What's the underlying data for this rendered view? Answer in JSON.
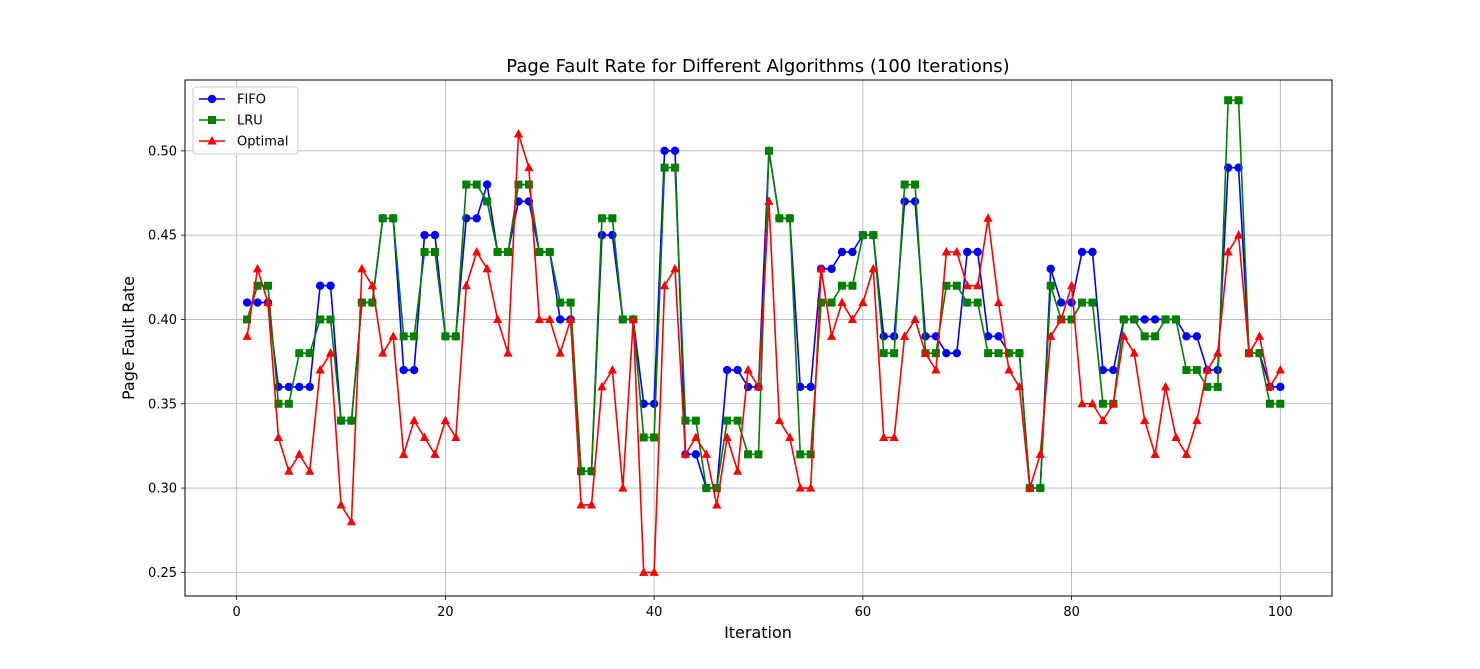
{
  "chart_data": {
    "type": "line",
    "title": "Page Fault Rate for Different Algorithms (100 Iterations)",
    "xlabel": "Iteration",
    "ylabel": "Page Fault Rate",
    "xlim": [
      -4.95,
      104.95
    ],
    "ylim": [
      0.236,
      0.542
    ],
    "xticks": [
      0,
      20,
      40,
      60,
      80,
      100
    ],
    "yticks": [
      0.25,
      0.3,
      0.35,
      0.4,
      0.45,
      0.5
    ],
    "ytick_labels": [
      "0.25",
      "0.30",
      "0.35",
      "0.40",
      "0.45",
      "0.50"
    ],
    "grid": true,
    "legend_position": "top-left",
    "x": [
      1,
      2,
      3,
      4,
      5,
      6,
      7,
      8,
      9,
      10,
      11,
      12,
      13,
      14,
      15,
      16,
      17,
      18,
      19,
      20,
      21,
      22,
      23,
      24,
      25,
      26,
      27,
      28,
      29,
      30,
      31,
      32,
      33,
      34,
      35,
      36,
      37,
      38,
      39,
      40,
      41,
      42,
      43,
      44,
      45,
      46,
      47,
      48,
      49,
      50,
      51,
      52,
      53,
      54,
      55,
      56,
      57,
      58,
      59,
      60,
      61,
      62,
      63,
      64,
      65,
      66,
      67,
      68,
      69,
      70,
      71,
      72,
      73,
      74,
      75,
      76,
      77,
      78,
      79,
      80,
      81,
      82,
      83,
      84,
      85,
      86,
      87,
      88,
      89,
      90,
      91,
      92,
      93,
      94,
      95,
      96,
      97,
      98,
      99,
      100
    ],
    "series": [
      {
        "name": "FIFO",
        "color": "#0000ff",
        "marker": "circle",
        "values": [
          0.41,
          0.41,
          0.41,
          0.36,
          0.36,
          0.36,
          0.36,
          0.42,
          0.42,
          0.34,
          0.34,
          0.41,
          0.41,
          0.46,
          0.46,
          0.37,
          0.37,
          0.45,
          0.45,
          0.39,
          0.39,
          0.46,
          0.46,
          0.48,
          0.44,
          0.44,
          0.47,
          0.47,
          0.44,
          0.44,
          0.4,
          0.4,
          0.31,
          0.31,
          0.45,
          0.45,
          0.4,
          0.4,
          0.35,
          0.35,
          0.5,
          0.5,
          0.32,
          0.32,
          0.3,
          0.3,
          0.37,
          0.37,
          0.36,
          0.36,
          0.5,
          0.46,
          0.46,
          0.36,
          0.36,
          0.43,
          0.43,
          0.44,
          0.44,
          0.45,
          0.45,
          0.39,
          0.39,
          0.47,
          0.47,
          0.39,
          0.39,
          0.38,
          0.38,
          0.44,
          0.44,
          0.39,
          0.39,
          0.38,
          0.38,
          0.3,
          0.3,
          0.43,
          0.41,
          0.41,
          0.44,
          0.44,
          0.37,
          0.37,
          0.4,
          0.4,
          0.4,
          0.4,
          0.4,
          0.4,
          0.39,
          0.39,
          0.37,
          0.37,
          0.49,
          0.49,
          0.38,
          0.38,
          0.36,
          0.36
        ]
      },
      {
        "name": "LRU",
        "color": "#008000",
        "marker": "square",
        "values": [
          0.4,
          0.42,
          0.42,
          0.35,
          0.35,
          0.38,
          0.38,
          0.4,
          0.4,
          0.34,
          0.34,
          0.41,
          0.41,
          0.46,
          0.46,
          0.39,
          0.39,
          0.44,
          0.44,
          0.39,
          0.39,
          0.48,
          0.48,
          0.47,
          0.44,
          0.44,
          0.48,
          0.48,
          0.44,
          0.44,
          0.41,
          0.41,
          0.31,
          0.31,
          0.46,
          0.46,
          0.4,
          0.4,
          0.33,
          0.33,
          0.49,
          0.49,
          0.34,
          0.34,
          0.3,
          0.3,
          0.34,
          0.34,
          0.32,
          0.32,
          0.5,
          0.46,
          0.46,
          0.32,
          0.32,
          0.41,
          0.41,
          0.42,
          0.42,
          0.45,
          0.45,
          0.38,
          0.38,
          0.48,
          0.48,
          0.38,
          0.38,
          0.42,
          0.42,
          0.41,
          0.41,
          0.38,
          0.38,
          0.38,
          0.38,
          0.3,
          0.3,
          0.42,
          0.4,
          0.4,
          0.41,
          0.41,
          0.35,
          0.35,
          0.4,
          0.4,
          0.39,
          0.39,
          0.4,
          0.4,
          0.37,
          0.37,
          0.36,
          0.36,
          0.53,
          0.53,
          0.38,
          0.38,
          0.35,
          0.35
        ]
      },
      {
        "name": "Optimal",
        "color": "#ff0000",
        "marker": "triangle",
        "values": [
          0.39,
          0.43,
          0.41,
          0.33,
          0.31,
          0.32,
          0.31,
          0.37,
          0.38,
          0.29,
          0.28,
          0.43,
          0.42,
          0.38,
          0.39,
          0.32,
          0.34,
          0.33,
          0.32,
          0.34,
          0.33,
          0.42,
          0.44,
          0.43,
          0.4,
          0.38,
          0.51,
          0.49,
          0.4,
          0.4,
          0.38,
          0.4,
          0.29,
          0.29,
          0.36,
          0.37,
          0.3,
          0.4,
          0.25,
          0.25,
          0.42,
          0.43,
          0.32,
          0.33,
          0.32,
          0.29,
          0.33,
          0.31,
          0.37,
          0.36,
          0.47,
          0.34,
          0.33,
          0.3,
          0.3,
          0.43,
          0.39,
          0.41,
          0.4,
          0.41,
          0.43,
          0.33,
          0.33,
          0.39,
          0.4,
          0.38,
          0.37,
          0.44,
          0.44,
          0.42,
          0.42,
          0.46,
          0.41,
          0.37,
          0.36,
          0.3,
          0.32,
          0.39,
          0.4,
          0.42,
          0.35,
          0.35,
          0.34,
          0.35,
          0.39,
          0.38,
          0.34,
          0.32,
          0.36,
          0.33,
          0.32,
          0.34,
          0.37,
          0.38,
          0.44,
          0.45,
          0.38,
          0.39,
          0.36,
          0.37
        ]
      }
    ]
  }
}
